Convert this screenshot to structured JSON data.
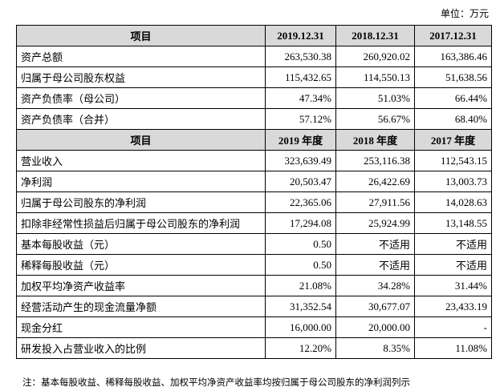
{
  "unit": "单位：万元",
  "table": {
    "sections": [
      {
        "header": [
          "项目",
          "2019.12.31",
          "2018.12.31",
          "2017.12.31"
        ],
        "rows": [
          [
            "资产总额",
            "263,530.38",
            "260,920.02",
            "163,386.46"
          ],
          [
            "归属于母公司股东权益",
            "115,432.65",
            "114,550.13",
            "51,638.56"
          ],
          [
            "资产负债率（母公司）",
            "47.34%",
            "51.03%",
            "66.44%"
          ],
          [
            "资产负债率（合并）",
            "57.12%",
            "56.67%",
            "68.40%"
          ]
        ]
      },
      {
        "header": [
          "项目",
          "2019 年度",
          "2018 年度",
          "2017 年度"
        ],
        "rows": [
          [
            "营业收入",
            "323,639.49",
            "253,116.38",
            "112,543.15"
          ],
          [
            "净利润",
            "20,503.47",
            "26,422.69",
            "13,003.73"
          ],
          [
            "归属于母公司股东的净利润",
            "22,365.06",
            "27,911.56",
            "14,028.63"
          ],
          [
            "扣除非经常性损益后归属于母公司股东的净利润",
            "17,294.08",
            "25,924.99",
            "13,148.55"
          ],
          [
            "基本每股收益（元）",
            "0.50",
            "不适用",
            "不适用"
          ],
          [
            "稀释每股收益（元）",
            "0.50",
            "不适用",
            "不适用"
          ],
          [
            "加权平均净资产收益率",
            "21.08%",
            "34.28%",
            "31.44%"
          ],
          [
            "经营活动产生的现金流量净额",
            "31,352.54",
            "30,677.07",
            "23,433.19"
          ],
          [
            "现金分红",
            "16,000.00",
            "20,000.00",
            "-"
          ],
          [
            "研发投入占营业收入的比例",
            "12.20%",
            "8.35%",
            "11.08%"
          ]
        ]
      }
    ]
  },
  "note": "注：基本每股收益、稀释每股收益、加权平均净资产收益率均按归属于母公司股东的净利润列示"
}
